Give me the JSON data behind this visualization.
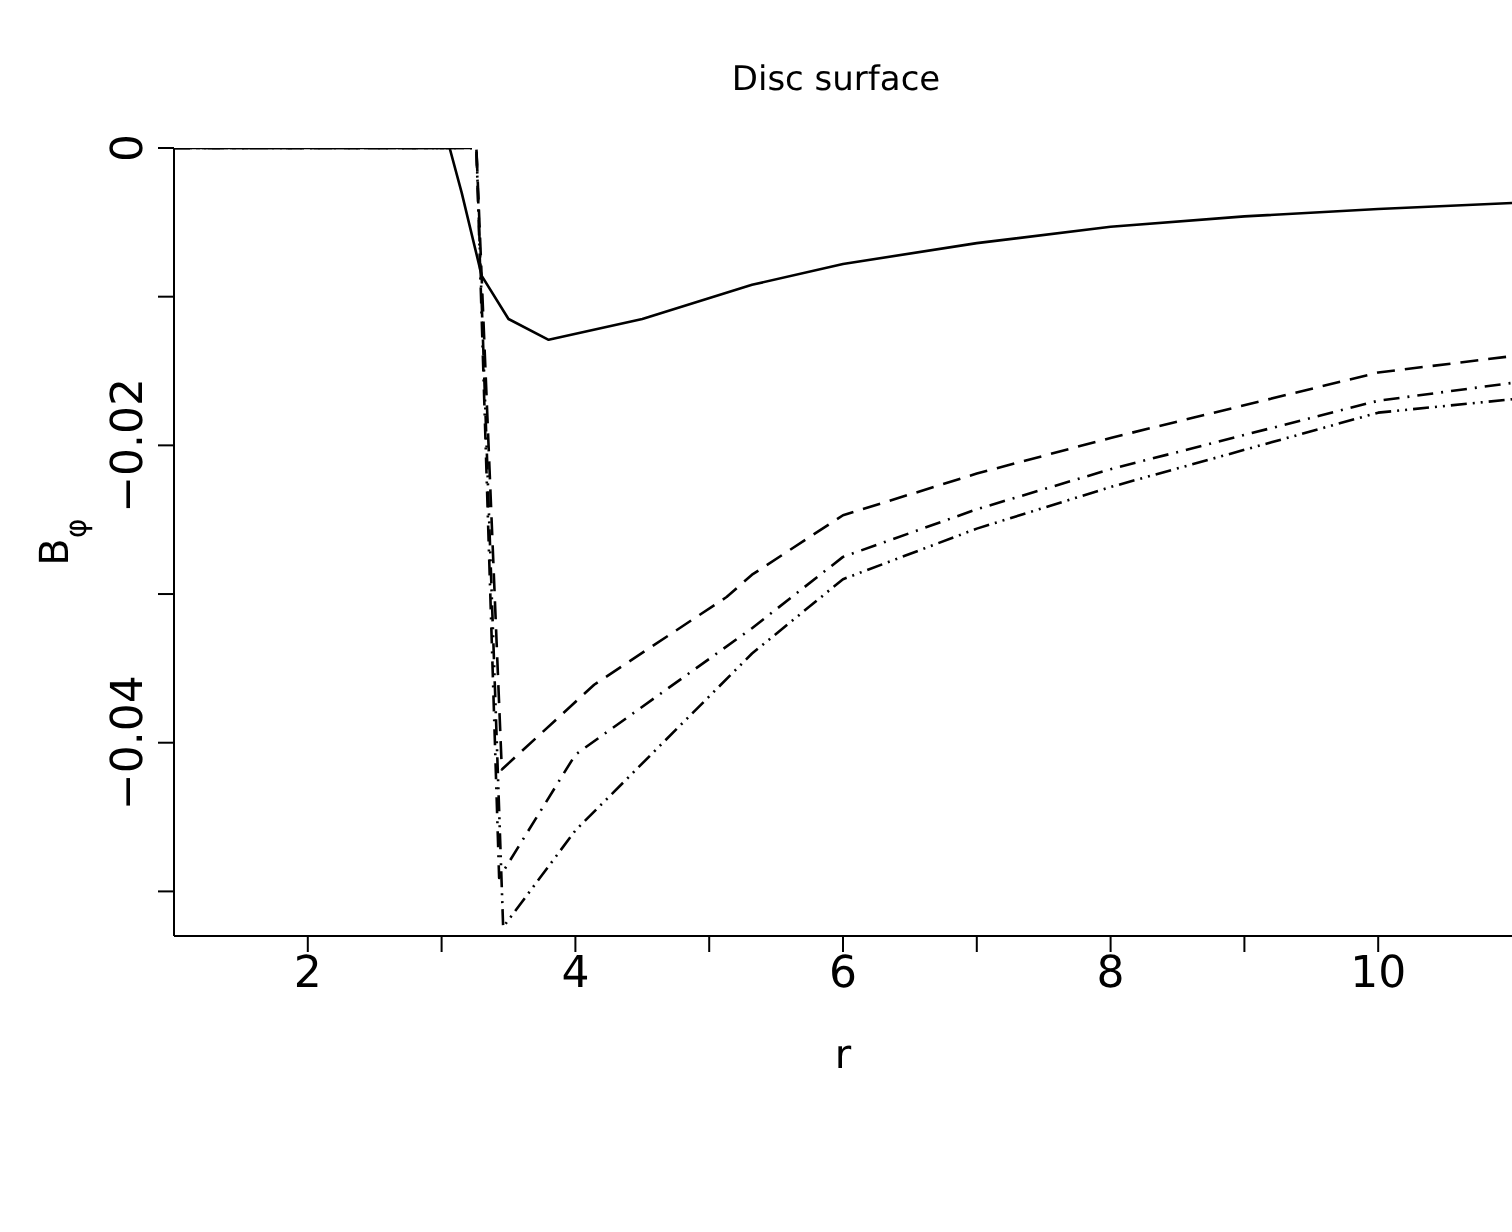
{
  "chart_data": {
    "type": "line",
    "title": "Disc surface",
    "xlabel": "r",
    "ylabel": "B$_{φ}$",
    "xlim": [
      1,
      11
    ],
    "ylim": [
      -0.053,
      0
    ],
    "xticks": [
      2,
      4,
      6,
      8,
      10,
      {
        "value": 3,
        "label": null
      },
      {
        "value": 5,
        "label": null
      },
      {
        "value": 7,
        "label": null
      },
      {
        "value": 9,
        "label": null
      }
    ],
    "yticks": [
      {
        "value": 0,
        "label": "0"
      },
      {
        "value": -0.02,
        "label": "−0.02"
      },
      {
        "value": -0.04,
        "label": "−0.04"
      },
      {
        "value": -0.01,
        "label": null
      },
      {
        "value": -0.03,
        "label": null
      },
      {
        "value": -0.05,
        "label": null
      }
    ],
    "grid": false,
    "legend": false,
    "marker": "none",
    "series": [
      {
        "color": "#000000",
        "line_style": "solid",
        "x": [
          1,
          3.06,
          3.15,
          3.3,
          3.5,
          3.8,
          4.5,
          5.32,
          6,
          7,
          8,
          9,
          10,
          11
        ],
        "values": [
          0,
          0,
          -0.003,
          -0.0086,
          -0.0115,
          -0.0129,
          -0.0115,
          -0.0092,
          -0.0078,
          -0.0064,
          -0.0053,
          -0.0046,
          -0.0041,
          -0.0037
        ]
      },
      {
        "color": "#000000",
        "line_style": "dashed",
        "x": [
          1,
          3.26,
          3.45,
          4.14,
          5.13,
          5.32,
          6,
          7,
          8,
          10,
          11
        ],
        "values": [
          0,
          0,
          -0.0418,
          -0.0361,
          -0.0302,
          -0.0287,
          -0.0247,
          -0.0219,
          -0.0195,
          -0.0151,
          -0.014
        ]
      },
      {
        "color": "#000000",
        "line_style": "dashdot",
        "x": [
          1,
          3.26,
          3.43,
          4,
          5.32,
          6,
          7,
          8,
          10,
          11
        ],
        "values": [
          0,
          0,
          -0.0491,
          -0.0408,
          -0.0323,
          -0.0275,
          -0.0243,
          -0.0216,
          -0.017,
          -0.0158
        ]
      },
      {
        "color": "#000000",
        "line_style": "dashdotdot",
        "x": [
          1,
          3.26,
          3.46,
          4,
          5.32,
          6,
          7,
          8,
          10,
          11
        ],
        "values": [
          0,
          0,
          -0.0524,
          -0.0459,
          -0.034,
          -0.029,
          -0.0256,
          -0.0228,
          -0.0178,
          -0.0169
        ]
      }
    ]
  }
}
